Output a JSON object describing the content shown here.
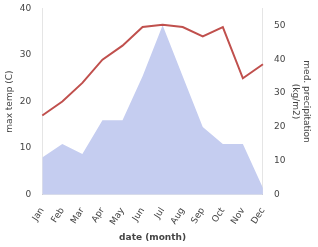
{
  "chart_data": {
    "type": "line",
    "categories": [
      "Jan",
      "Feb",
      "Mar",
      "Apr",
      "May",
      "Jun",
      "Jul",
      "Aug",
      "Sep",
      "Oct",
      "Nov",
      "Dec"
    ],
    "series": [
      {
        "type": "line",
        "color": "#c0504d",
        "values": [
          17,
          20,
          24,
          29,
          32,
          36,
          36.5,
          36,
          34,
          36,
          25,
          28
        ]
      },
      {
        "type": "area",
        "axis": "y2",
        "color": "#c5cdf0",
        "values": [
          11,
          15,
          12,
          22,
          22,
          35,
          50,
          35,
          20,
          15,
          15,
          2
        ]
      }
    ],
    "x_label": "date (month)",
    "y_label": "max temp (C)",
    "y2_label": "med. precipitation\n(kg/m2)",
    "ylim": [
      0,
      40
    ],
    "yticks": [
      0,
      10,
      20,
      30,
      40
    ],
    "y2lim": [
      0,
      55
    ],
    "y2ticks": [
      0,
      10,
      20,
      30,
      40,
      50
    ],
    "grid": false
  }
}
